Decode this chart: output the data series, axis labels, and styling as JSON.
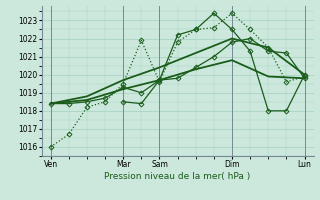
{
  "bg_color": "#cce8dc",
  "grid_color": "#aad4c4",
  "line_color": "#1a5c1a",
  "xlabel": "Pression niveau de la mer( hPa )",
  "ylim": [
    1015.5,
    1023.8
  ],
  "yticks": [
    1016,
    1017,
    1018,
    1019,
    1020,
    1021,
    1022,
    1023
  ],
  "xtick_labels": [
    "Ven",
    "Mar",
    "Sam",
    "Dim",
    "Lun"
  ],
  "xtick_positions": [
    0,
    4,
    6,
    10,
    14
  ],
  "vline_positions": [
    0,
    4,
    6,
    10,
    14
  ],
  "xlim": [
    -0.5,
    14.5
  ],
  "series": [
    {
      "name": "line1_dotted_markers",
      "x": [
        0,
        1,
        2,
        3,
        4,
        5,
        6,
        7,
        8,
        9,
        10,
        11,
        12,
        13,
        14
      ],
      "y": [
        1016.0,
        1016.7,
        1018.2,
        1018.5,
        1019.5,
        1021.9,
        1019.6,
        1021.8,
        1022.5,
        1022.6,
        1023.4,
        1022.5,
        1021.5,
        1019.6,
        1019.9
      ],
      "marker": "D",
      "markersize": 2.5,
      "linewidth": 0.9,
      "linestyle": ":"
    },
    {
      "name": "line2_solid_markers",
      "x": [
        0,
        1,
        2,
        3,
        4,
        5,
        6,
        7,
        8,
        9,
        10,
        11,
        12,
        13,
        14
      ],
      "y": [
        1018.4,
        1018.4,
        1018.5,
        1018.7,
        1019.3,
        1019.0,
        1019.7,
        1019.8,
        1020.4,
        1021.0,
        1021.8,
        1022.0,
        1021.3,
        1021.2,
        1019.8
      ],
      "marker": "D",
      "markersize": 2.5,
      "linewidth": 0.9,
      "linestyle": "-"
    },
    {
      "name": "line3_solid_no_marker_lower",
      "x": [
        0,
        2,
        4,
        6,
        8,
        10,
        12,
        14
      ],
      "y": [
        1018.4,
        1018.6,
        1019.2,
        1019.7,
        1020.3,
        1020.8,
        1019.9,
        1019.8
      ],
      "marker": null,
      "markersize": 0,
      "linewidth": 1.3,
      "linestyle": "-"
    },
    {
      "name": "line4_solid_no_marker_upper",
      "x": [
        0,
        2,
        4,
        6,
        8,
        10,
        12,
        14
      ],
      "y": [
        1018.4,
        1018.8,
        1019.7,
        1020.4,
        1021.2,
        1022.0,
        1021.5,
        1020.0
      ],
      "marker": null,
      "markersize": 0,
      "linewidth": 1.3,
      "linestyle": "-"
    },
    {
      "name": "line5_solid_markers_sharp",
      "x": [
        4,
        5,
        6,
        7,
        8,
        9,
        10,
        11,
        12,
        13,
        14
      ],
      "y": [
        1018.5,
        1018.4,
        1019.7,
        1022.2,
        1022.5,
        1023.4,
        1022.5,
        1021.3,
        1018.0,
        1018.0,
        1020.0
      ],
      "marker": "D",
      "markersize": 2.5,
      "linewidth": 0.9,
      "linestyle": "-"
    }
  ]
}
